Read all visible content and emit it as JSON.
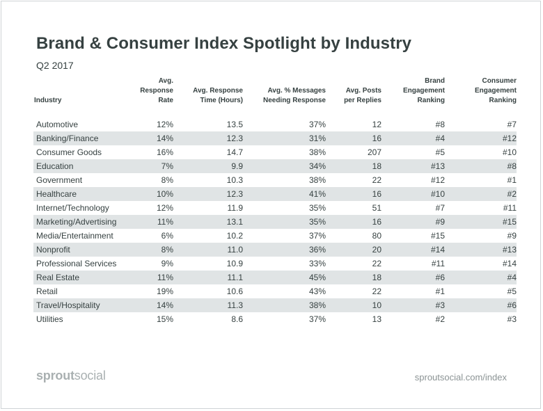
{
  "chart_data": {
    "type": "table",
    "title": "Brand & Consumer Index Spotlight by Industry",
    "subtitle": "Q2 2017",
    "columns": [
      [
        "Industry"
      ],
      [
        "Avg.",
        "Response Rate"
      ],
      [
        "Avg. Response",
        "Time (Hours)"
      ],
      [
        "Avg. % Messages",
        "Needing Response"
      ],
      [
        "Avg. Posts",
        "per Replies"
      ],
      [
        "Brand",
        "Engagement",
        "Ranking"
      ],
      [
        "Consumer",
        "Engagement",
        "Ranking"
      ]
    ],
    "rows": [
      [
        "Automotive",
        "12%",
        "13.5",
        "37%",
        "12",
        "#8",
        "#7"
      ],
      [
        "Banking/Finance",
        "14%",
        "12.3",
        "31%",
        "16",
        "#4",
        "#12"
      ],
      [
        "Consumer Goods",
        "16%",
        "14.7",
        "38%",
        "207",
        "#5",
        "#10"
      ],
      [
        "Education",
        "7%",
        "9.9",
        "34%",
        "18",
        "#13",
        "#8"
      ],
      [
        "Government",
        "8%",
        "10.3",
        "38%",
        "22",
        "#12",
        "#1"
      ],
      [
        "Healthcare",
        "10%",
        "12.3",
        "41%",
        "16",
        "#10",
        "#2"
      ],
      [
        "Internet/Technology",
        "12%",
        "11.9",
        "35%",
        "51",
        "#7",
        "#11"
      ],
      [
        "Marketing/Advertising",
        "11%",
        "13.1",
        "35%",
        "16",
        "#9",
        "#15"
      ],
      [
        "Media/Entertainment",
        "6%",
        "10.2",
        "37%",
        "80",
        "#15",
        "#9"
      ],
      [
        "Nonprofit",
        "8%",
        "11.0",
        "36%",
        "20",
        "#14",
        "#13"
      ],
      [
        "Professional Services",
        "9%",
        "10.9",
        "33%",
        "22",
        "#11",
        "#14"
      ],
      [
        "Real Estate",
        "11%",
        "11.1",
        "45%",
        "18",
        "#6",
        "#4"
      ],
      [
        "Retail",
        "19%",
        "10.6",
        "43%",
        "22",
        "#1",
        "#5"
      ],
      [
        "Travel/Hospitality",
        "14%",
        "11.3",
        "38%",
        "10",
        "#3",
        "#6"
      ],
      [
        "Utilities",
        "15%",
        "8.6",
        "37%",
        "13",
        "#2",
        "#3"
      ]
    ]
  },
  "footer": {
    "logo_bold": "sprout",
    "logo_regular": "social",
    "url": "sproutsocial.com/index"
  },
  "colors": {
    "text": "#364141",
    "stripe": "#e0e4e5",
    "muted": "#a9b0b1"
  }
}
